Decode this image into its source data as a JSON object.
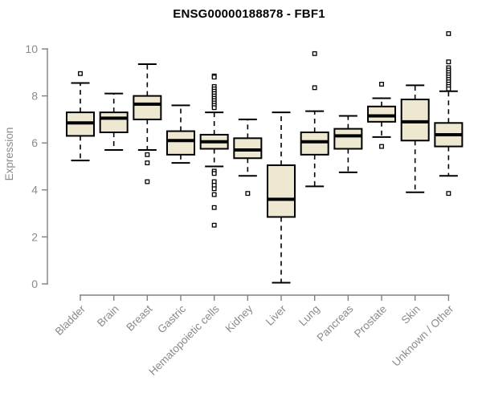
{
  "chart_data": {
    "type": "boxplot",
    "title": "ENSG00000188878 - FBF1",
    "xlabel": "",
    "ylabel": "Expression",
    "ylim": [
      0,
      10
    ],
    "yticks": [
      0,
      2,
      4,
      6,
      8,
      10
    ],
    "grid": "off",
    "legend": "none",
    "colors": {
      "box_fill": "#EEE8D1",
      "box_border": "#000000",
      "median": "#000000",
      "whisker": "#000000",
      "outlier_fill": "#ffffff",
      "outlier_stroke": "#000000",
      "axis": "#808080",
      "axis_text": "#8a8a8a",
      "title_text": "#000000",
      "background": "#ffffff"
    },
    "categories": [
      "Bladder",
      "Brain",
      "Breast",
      "Gastric",
      "Hematopoietic cells",
      "Kidney",
      "Liver",
      "Lung",
      "Pancreas",
      "Prostate",
      "Skin",
      "Unknown / Other"
    ],
    "boxes": [
      {
        "label": "Bladder",
        "whisker_low": 5.25,
        "q1": 6.3,
        "median": 6.85,
        "q3": 7.3,
        "whisker_high": 8.55,
        "outliers": [
          8.95
        ]
      },
      {
        "label": "Brain",
        "whisker_low": 5.7,
        "q1": 6.45,
        "median": 7.05,
        "q3": 7.3,
        "whisker_high": 8.1,
        "outliers": []
      },
      {
        "label": "Breast",
        "whisker_low": 5.7,
        "q1": 7.0,
        "median": 7.65,
        "q3": 8.0,
        "whisker_high": 9.35,
        "outliers": [
          5.5,
          5.15,
          4.35
        ]
      },
      {
        "label": "Gastric",
        "whisker_low": 5.15,
        "q1": 5.5,
        "median": 6.1,
        "q3": 6.5,
        "whisker_high": 7.6,
        "outliers": []
      },
      {
        "label": "Hematopoietic cells",
        "whisker_low": 5.0,
        "q1": 5.75,
        "median": 6.05,
        "q3": 6.35,
        "whisker_high": 7.3,
        "outliers": [
          8.85,
          8.8,
          8.4,
          8.3,
          8.2,
          8.1,
          8.0,
          7.9,
          7.8,
          7.7,
          7.6,
          7.5,
          4.8,
          4.7,
          4.35,
          4.2,
          4.05,
          3.8,
          3.25,
          2.5
        ]
      },
      {
        "label": "Kidney",
        "whisker_low": 4.6,
        "q1": 5.35,
        "median": 5.7,
        "q3": 6.2,
        "whisker_high": 7.0,
        "outliers": [
          3.85
        ]
      },
      {
        "label": "Liver",
        "whisker_low": 0.05,
        "q1": 2.85,
        "median": 3.6,
        "q3": 5.05,
        "whisker_high": 7.3,
        "outliers": []
      },
      {
        "label": "Lung",
        "whisker_low": 4.15,
        "q1": 5.5,
        "median": 6.05,
        "q3": 6.45,
        "whisker_high": 7.35,
        "outliers": [
          9.8,
          8.35
        ]
      },
      {
        "label": "Pancreas",
        "whisker_low": 4.75,
        "q1": 5.75,
        "median": 6.3,
        "q3": 6.6,
        "whisker_high": 7.15,
        "outliers": []
      },
      {
        "label": "Prostate",
        "whisker_low": 6.25,
        "q1": 6.9,
        "median": 7.15,
        "q3": 7.55,
        "whisker_high": 7.9,
        "outliers": [
          8.5,
          5.85
        ]
      },
      {
        "label": "Skin",
        "whisker_low": 3.9,
        "q1": 6.1,
        "median": 6.9,
        "q3": 7.85,
        "whisker_high": 8.45,
        "outliers": []
      },
      {
        "label": "Unknown / Other",
        "whisker_low": 4.6,
        "q1": 5.85,
        "median": 6.35,
        "q3": 6.85,
        "whisker_high": 8.2,
        "outliers": [
          10.65,
          9.45,
          9.2,
          9.1,
          9.0,
          8.9,
          8.8,
          8.7,
          8.6,
          8.5,
          8.4,
          8.3,
          3.85
        ]
      }
    ]
  }
}
